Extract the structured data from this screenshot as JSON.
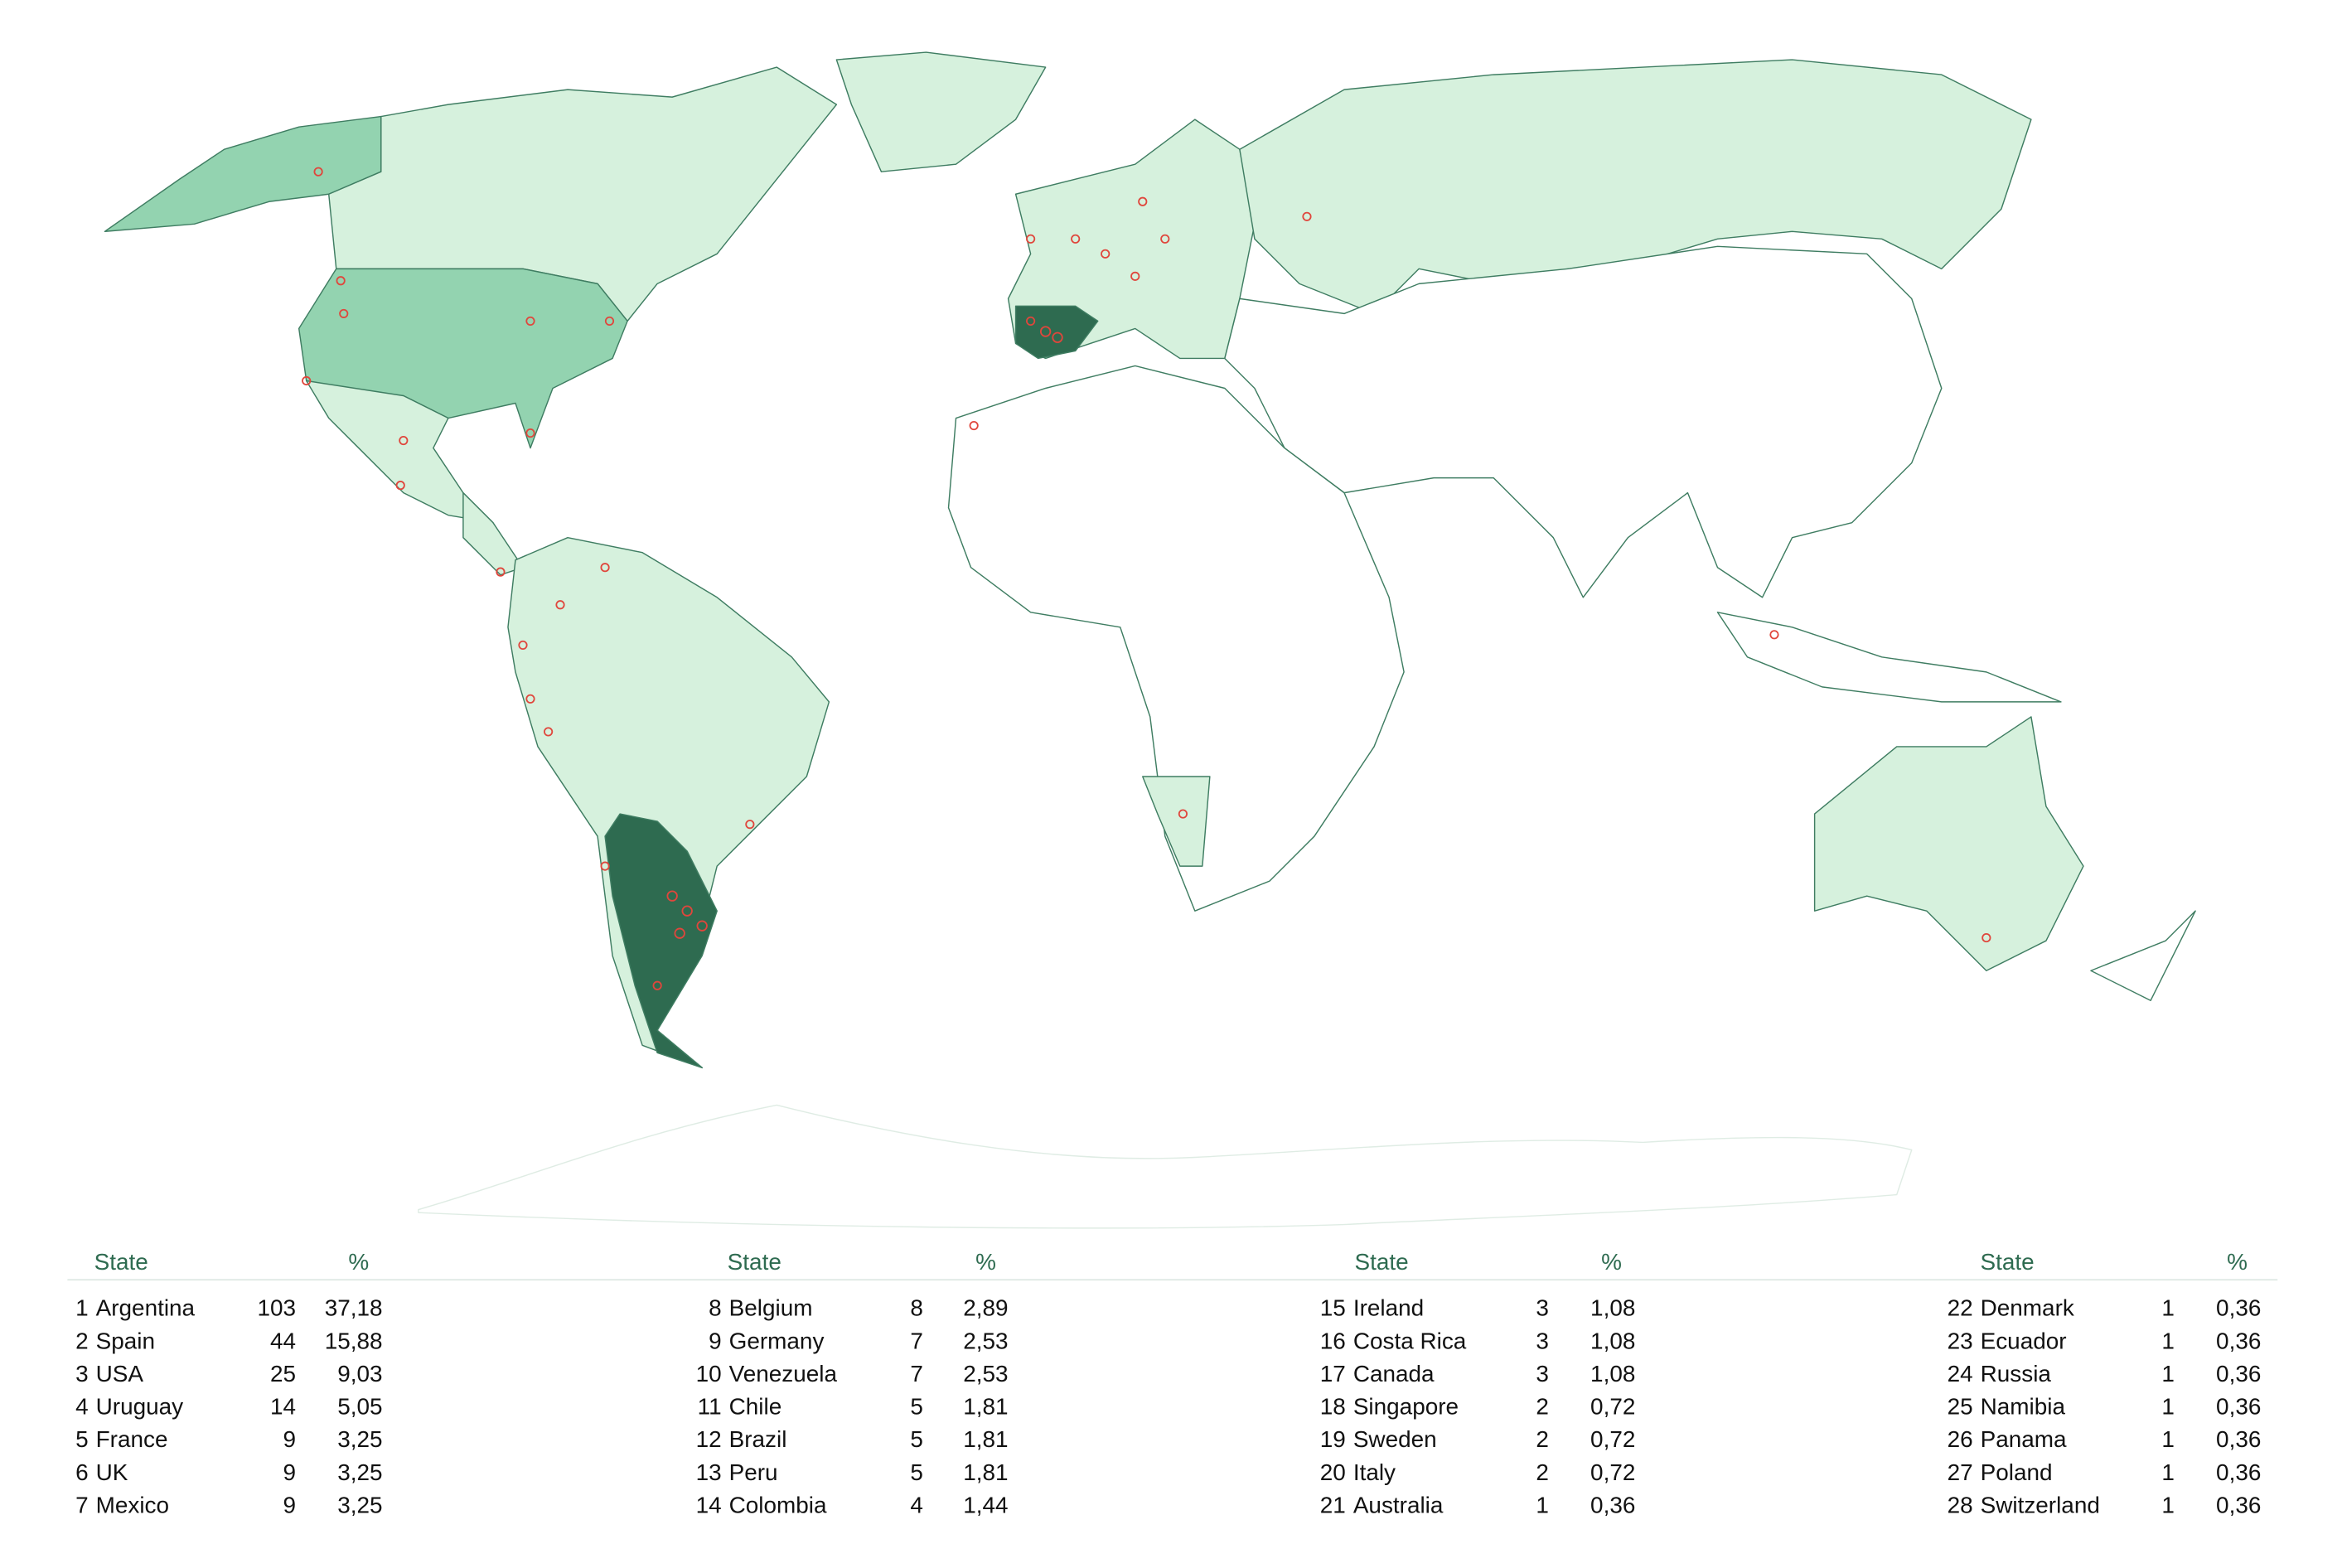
{
  "table": {
    "headers": [
      "State",
      "%"
    ],
    "rows": [
      [
        1,
        "Argentina",
        103,
        "37,18"
      ],
      [
        2,
        "Spain",
        44,
        "15,88"
      ],
      [
        3,
        "USA",
        25,
        "9,03"
      ],
      [
        4,
        "Uruguay",
        14,
        "5,05"
      ],
      [
        5,
        "France",
        9,
        "3,25"
      ],
      [
        6,
        "UK",
        9,
        "3,25"
      ],
      [
        7,
        "Mexico",
        9,
        "3,25"
      ],
      [
        8,
        "Belgium",
        8,
        "2,89"
      ],
      [
        9,
        "Germany",
        7,
        "2,53"
      ],
      [
        10,
        "Venezuela",
        7,
        "2,53"
      ],
      [
        11,
        "Chile",
        5,
        "1,81"
      ],
      [
        12,
        "Brazil",
        5,
        "1,81"
      ],
      [
        13,
        "Peru",
        5,
        "1,81"
      ],
      [
        14,
        "Colombia",
        4,
        "1,44"
      ],
      [
        15,
        "Ireland",
        3,
        "1,08"
      ],
      [
        16,
        "Costa Rica",
        3,
        "1,08"
      ],
      [
        17,
        "Canada",
        3,
        "1,08"
      ],
      [
        18,
        "Singapore",
        2,
        "0,72"
      ],
      [
        19,
        "Sweden",
        2,
        "0,72"
      ],
      [
        20,
        "Italy",
        2,
        "0,72"
      ],
      [
        21,
        "Australia",
        1,
        "0,36"
      ],
      [
        22,
        "Denmark",
        1,
        "0,36"
      ],
      [
        23,
        "Ecuador",
        1,
        "0,36"
      ],
      [
        24,
        "Russia",
        1,
        "0,36"
      ],
      [
        25,
        "Namibia",
        1,
        "0,36"
      ],
      [
        26,
        "Panama",
        1,
        "0,36"
      ],
      [
        27,
        "Poland",
        1,
        "0,36"
      ],
      [
        28,
        "Switzerland",
        1,
        "0,36"
      ]
    ]
  }
}
